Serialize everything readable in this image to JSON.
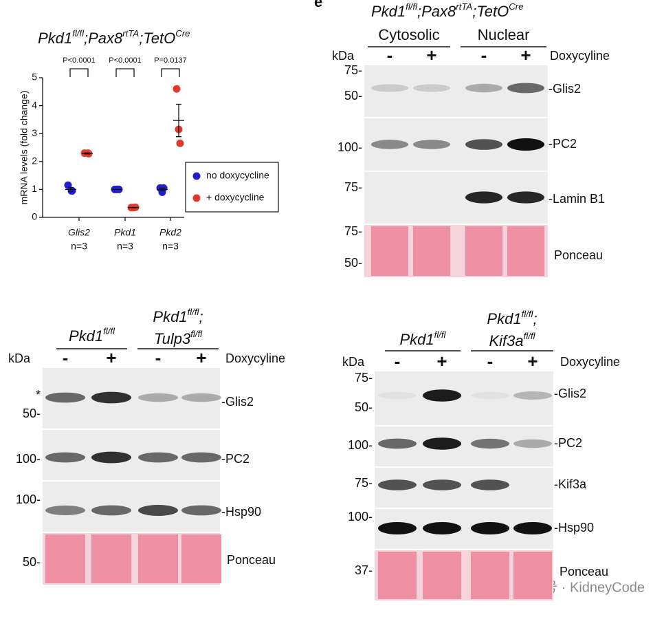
{
  "chart_data": {
    "type": "strip",
    "title": [
      "Pkd1",
      "fl/fl",
      ";Pax8",
      "rtTA",
      ";TetO",
      "Cre"
    ],
    "y_label": "mRNA levels (fold change)",
    "categories": [
      "Glis2",
      "Pkd1",
      "Pkd2"
    ],
    "category_notes": [
      "n=3",
      "n=3",
      "n=3"
    ],
    "annotations": [
      "P<0.0001",
      "P<0.0001",
      "P=0.0137"
    ],
    "ylim": [
      0,
      5
    ],
    "yticks": [
      0,
      1,
      2,
      3,
      4,
      5
    ],
    "legend": "right",
    "series": [
      {
        "name": "no doxycycline",
        "color": "#1f1fd0",
        "values": [
          [
            1.15,
            0.95,
            0.95
          ],
          [
            1.0,
            1.0,
            1.0
          ],
          [
            1.05,
            0.9,
            1.05
          ]
        ],
        "means": [
          1.0,
          1.0,
          1.0
        ],
        "sem": [
          0.07,
          0.0,
          0.05
        ]
      },
      {
        "name": "+ doxycycline",
        "color": "#e03a2e",
        "values": [
          [
            2.3,
            2.28,
            2.3
          ],
          [
            0.35,
            0.35,
            0.36
          ],
          [
            4.6,
            3.15,
            2.65
          ]
        ],
        "means": [
          2.29,
          0.35,
          3.47
        ],
        "sem": [
          0.02,
          0.01,
          0.58
        ]
      }
    ]
  },
  "panel_letter": "e",
  "blots": [
    {
      "title": [
        "Pkd1",
        "fl/fl",
        ";Pax8",
        "rtTA",
        ";TetO",
        "Cre"
      ],
      "groups": [
        {
          "lines": [
            [
              "Cytosolic"
            ]
          ]
        },
        {
          "lines": [
            [
              "Nuclear"
            ]
          ]
        }
      ],
      "kda": "kDa",
      "signs": [
        "-",
        "+",
        "-",
        "+"
      ],
      "treatment": "Doxycyline",
      "markers": [
        "75-",
        "50-",
        "100-",
        "75-",
        "75-",
        "50-"
      ],
      "row_labels": [
        "-Glis2",
        "-PC2",
        "-Lamin B1",
        "Ponceau"
      ]
    },
    {
      "groups": [
        {
          "lines": [
            [
              "Pkd1",
              "fl/fl"
            ]
          ]
        },
        {
          "lines": [
            [
              "Pkd1",
              "fl/fl",
              ";"
            ],
            [
              "Tulp3",
              "fl/fl"
            ]
          ]
        }
      ],
      "kda": "kDa",
      "signs": [
        "-",
        "+",
        "-",
        "+"
      ],
      "treatment": "Doxycyline",
      "markers": [
        "*",
        "50-",
        "100-",
        "100-",
        "50-"
      ],
      "row_labels": [
        "-Glis2",
        "-PC2",
        "-Hsp90",
        "Ponceau"
      ]
    },
    {
      "groups": [
        {
          "lines": [
            [
              "Pkd1",
              "fl/fl"
            ]
          ]
        },
        {
          "lines": [
            [
              "Pkd1",
              "fl/fl",
              ";"
            ],
            [
              "Kif3a",
              "fl/fl"
            ]
          ]
        }
      ],
      "kda": "kDa",
      "signs": [
        "-",
        "+",
        "-",
        "+"
      ],
      "treatment": "Doxycyline",
      "markers": [
        "75-",
        "50-",
        "100-",
        "75-",
        "100-",
        "37-"
      ],
      "row_labels": [
        "-Glis2",
        "-PC2",
        "-Kif3a",
        "-Hsp90",
        "Ponceau"
      ]
    }
  ],
  "watermark": "公众号 · KidneyCode"
}
